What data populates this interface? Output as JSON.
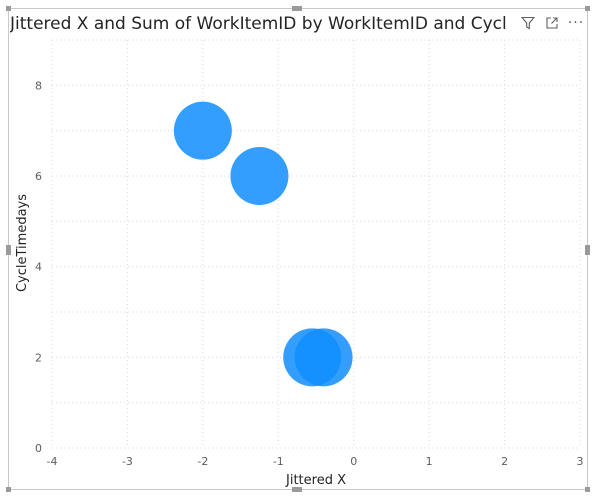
{
  "visual": {
    "title": "Jittered X and Sum of WorkItemID by WorkItemID and CycleTimedays",
    "icons": [
      "filter-icon",
      "focus-mode-icon",
      "more-options-icon"
    ]
  },
  "chart_data": {
    "type": "scatter",
    "title": "Jittered X and Sum of WorkItemID by WorkItemID and CycleTimedays",
    "xlabel": "Jittered X",
    "ylabel": "CycleTimedays",
    "xlim": [
      -4,
      3
    ],
    "ylim": [
      0,
      9
    ],
    "x_ticks": [
      "-4",
      "-3",
      "-2",
      "-1",
      "0",
      "1",
      "2",
      "3"
    ],
    "y_ticks": [
      "0",
      "2",
      "4",
      "6",
      "8"
    ],
    "grid": true,
    "color": "#118DFF",
    "points": [
      {
        "x": -2.0,
        "y": 7
      },
      {
        "x": -1.25,
        "y": 6
      },
      {
        "x": -0.55,
        "y": 2
      },
      {
        "x": -0.4,
        "y": 2
      }
    ]
  }
}
